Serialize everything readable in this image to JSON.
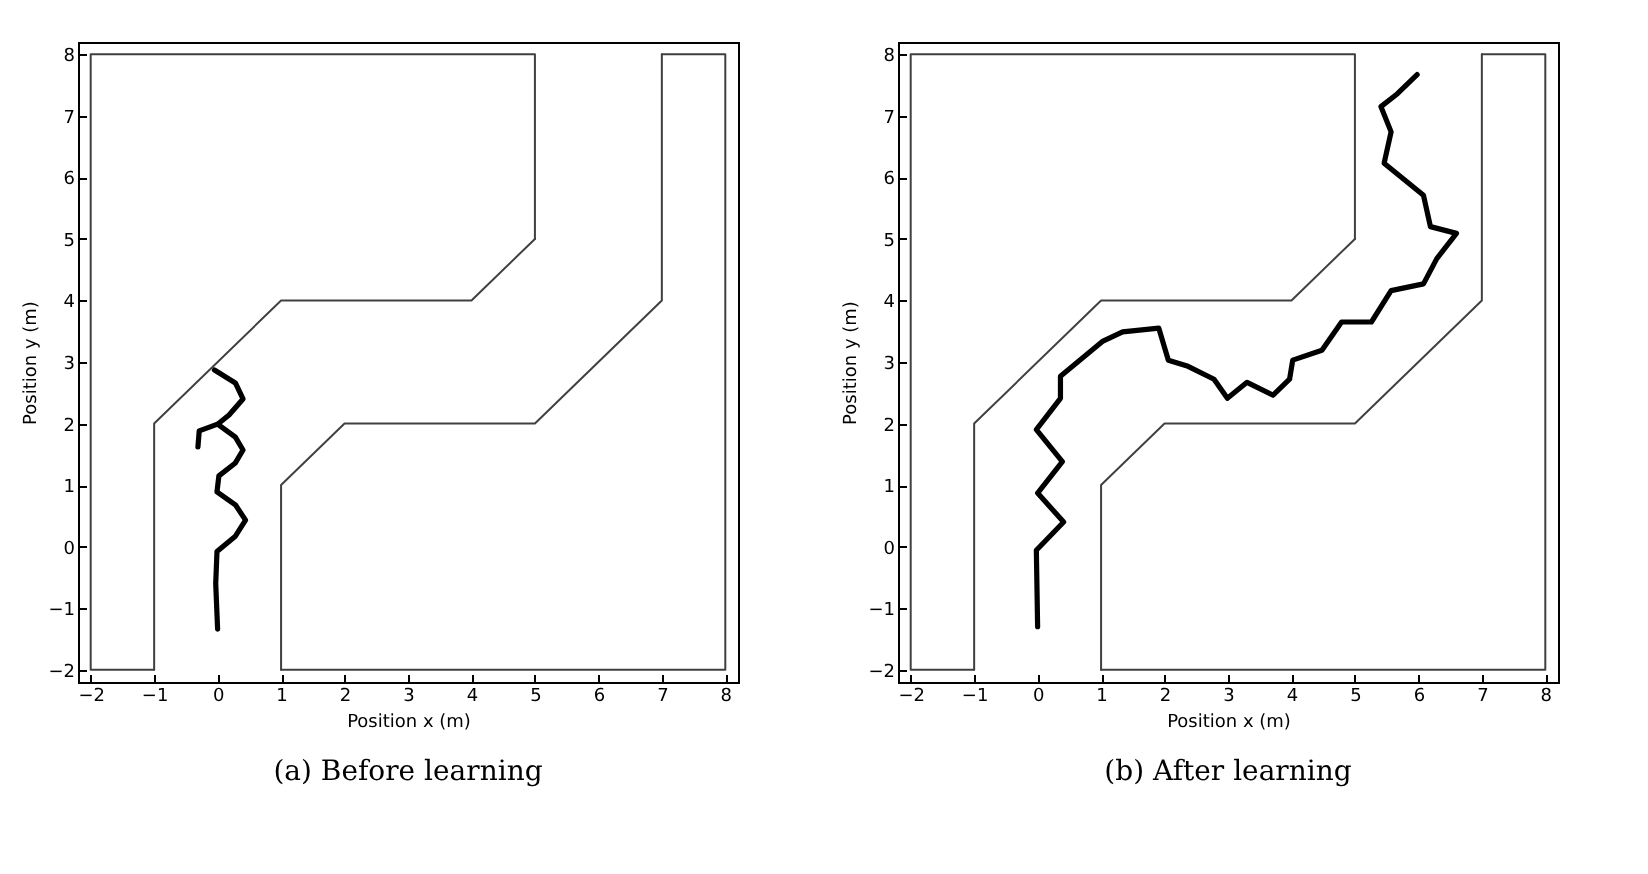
{
  "chart_data": [
    {
      "type": "line",
      "title": "(a) Before learning",
      "xlabel": "Position x (m)",
      "ylabel": "Position y (m)",
      "xlim": [
        -2.2,
        8.2
      ],
      "ylim": [
        -2.2,
        8.2
      ],
      "xticks": [
        -2,
        -1,
        0,
        1,
        2,
        3,
        4,
        5,
        6,
        7,
        8
      ],
      "yticks": [
        -2,
        -1,
        0,
        1,
        2,
        3,
        4,
        5,
        6,
        7,
        8
      ],
      "grid": false,
      "series": [
        {
          "color": "#404040",
          "x": [
            -1,
            -2,
            -2,
            5,
            5
          ],
          "values": [
            -2,
            -2,
            8,
            8,
            5
          ]
        },
        {
          "color": "#404040",
          "x": [
            5,
            4,
            1,
            -1,
            -1
          ],
          "values": [
            5,
            4,
            4,
            2,
            -2
          ]
        },
        {
          "color": "#404040",
          "x": [
            1,
            1,
            2,
            5,
            7,
            7
          ],
          "values": [
            -2,
            1,
            2,
            2,
            4,
            8
          ]
        },
        {
          "color": "#404040",
          "x": [
            7,
            8,
            8,
            1
          ],
          "values": [
            8,
            8,
            -2,
            -2
          ]
        },
        {
          "color": "#000000",
          "x": [
            0.0,
            -0.03,
            -0.01,
            0.28,
            0.44,
            0.28,
            -0.01,
            0.02,
            0.28,
            0.4,
            0.28,
            0.0,
            0.18,
            0.4,
            0.28,
            -0.05
          ],
          "values": [
            -1.34,
            -0.6,
            -0.08,
            0.17,
            0.43,
            0.68,
            0.89,
            1.15,
            1.36,
            1.57,
            1.78,
            1.99,
            2.14,
            2.4,
            2.66,
            2.87
          ]
        },
        {
          "color": "#000000",
          "x": [
            0.0,
            -0.29,
            -0.31
          ],
          "values": [
            1.99,
            1.88,
            1.62
          ]
        }
      ]
    },
    {
      "type": "line",
      "title": "(b) After learning",
      "xlabel": "Position x (m)",
      "ylabel": "Position y (m)",
      "xlim": [
        -2.2,
        8.2
      ],
      "ylim": [
        -2.2,
        8.2
      ],
      "xticks": [
        -2,
        -1,
        0,
        1,
        2,
        3,
        4,
        5,
        6,
        7,
        8
      ],
      "yticks": [
        -2,
        -1,
        0,
        1,
        2,
        3,
        4,
        5,
        6,
        7,
        8
      ],
      "grid": false,
      "series": [
        {
          "color": "#404040",
          "x": [
            -1,
            -2,
            -2,
            5,
            5
          ],
          "values": [
            -2,
            -2,
            8,
            8,
            5
          ]
        },
        {
          "color": "#404040",
          "x": [
            5,
            4,
            1,
            -1,
            -1
          ],
          "values": [
            5,
            4,
            4,
            2,
            -2
          ]
        },
        {
          "color": "#404040",
          "x": [
            1,
            1,
            2,
            5,
            7,
            7
          ],
          "values": [
            -2,
            1,
            2,
            2,
            4,
            8
          ]
        },
        {
          "color": "#404040",
          "x": [
            7,
            8,
            8,
            1
          ],
          "values": [
            8,
            8,
            -2,
            -2
          ]
        },
        {
          "color": "#000000",
          "x": [
            0.0,
            -0.02,
            0.41,
            0.0,
            0.39,
            -0.02,
            0.36,
            0.36,
            1.03,
            1.34,
            1.91,
            2.06,
            2.37,
            2.78,
            2.99,
            3.3,
            3.71,
            3.97,
            4.02,
            4.48,
            4.79,
            5.26,
            5.57,
            6.08,
            6.29,
            6.6,
            6.19,
            6.08,
            5.46,
            5.57,
            5.41,
            5.67,
            5.98
          ],
          "values": [
            -1.3,
            -0.06,
            0.4,
            0.87,
            1.38,
            1.9,
            2.41,
            2.77,
            3.34,
            3.49,
            3.55,
            3.03,
            2.93,
            2.72,
            2.41,
            2.67,
            2.46,
            2.72,
            3.03,
            3.19,
            3.65,
            3.65,
            4.16,
            4.27,
            4.68,
            5.09,
            5.2,
            5.71,
            6.23,
            6.74,
            7.15,
            7.36,
            7.67
          ]
        }
      ]
    }
  ]
}
